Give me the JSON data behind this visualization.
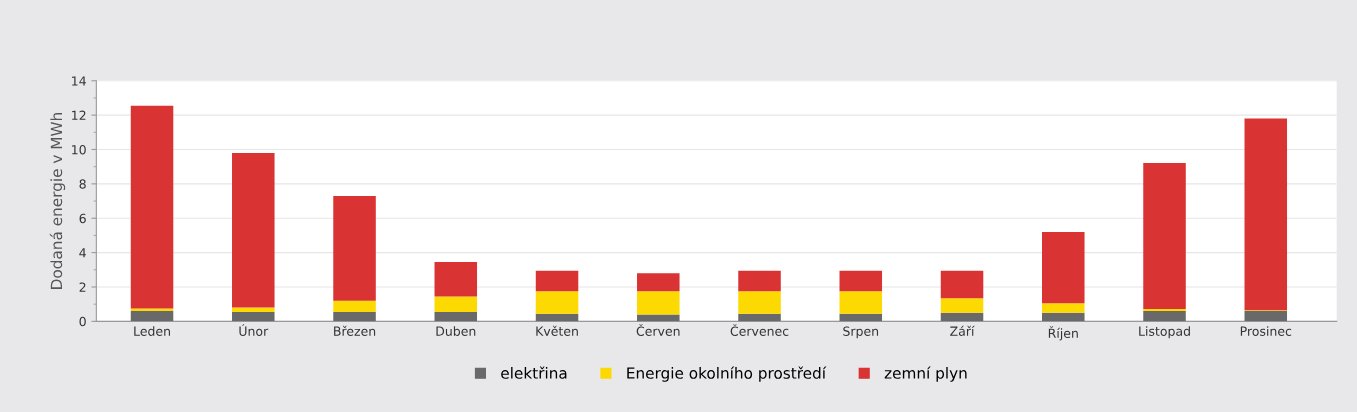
{
  "chart_data": {
    "type": "bar",
    "stacked": true,
    "ylabel": "Dodaná energie v MWh",
    "categories": [
      "Leden",
      "Únor",
      "Březen",
      "Duben",
      "Květen",
      "Červen",
      "Červenec",
      "Srpen",
      "Září",
      "Říjen",
      "Listopad",
      "Prosinec"
    ],
    "series": [
      {
        "name": "elektřina",
        "color": "#696969",
        "values": [
          0.6,
          0.55,
          0.55,
          0.55,
          0.45,
          0.4,
          0.45,
          0.45,
          0.5,
          0.5,
          0.6,
          0.6
        ]
      },
      {
        "name": "Energie okolního prostředí",
        "color": "#fcd900",
        "values": [
          0.15,
          0.25,
          0.65,
          0.9,
          1.3,
          1.35,
          1.3,
          1.3,
          0.85,
          0.55,
          0.12,
          0.05
        ]
      },
      {
        "name": "zemní plyn",
        "color": "#d93333",
        "values": [
          11.8,
          9.0,
          6.1,
          2.0,
          1.2,
          1.05,
          1.2,
          1.2,
          1.6,
          4.15,
          8.5,
          11.15
        ]
      }
    ],
    "ylim": [
      0,
      14
    ],
    "yticks": [
      0,
      2,
      4,
      6,
      8,
      10,
      12,
      14
    ],
    "grid": "y",
    "legend": "bottom",
    "marker": "square"
  }
}
